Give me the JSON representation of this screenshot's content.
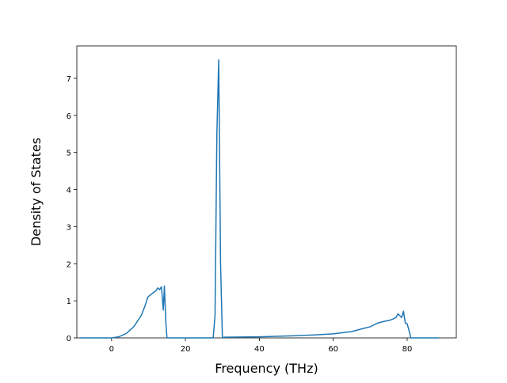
{
  "chart_data": {
    "type": "line",
    "x_label": "Frequency (THz)",
    "y_label": "Density of States",
    "x": [
      -8.5,
      0,
      2,
      4,
      6,
      8,
      9,
      9.8,
      11,
      12,
      12.5,
      13,
      13.5,
      14,
      14.3,
      14.7,
      15,
      27.5,
      28,
      28.5,
      29,
      29.5,
      30,
      30.5,
      40,
      50,
      55,
      60,
      65,
      68,
      70,
      72,
      74,
      75,
      76,
      77,
      77.5,
      78,
      78.5,
      79,
      79.5,
      80,
      80.5,
      81,
      88.5
    ],
    "series": [
      {
        "name": "DOS",
        "color": "#1f77b4",
        "values": [
          0,
          0,
          0.03,
          0.12,
          0.3,
          0.6,
          0.85,
          1.1,
          1.2,
          1.27,
          1.35,
          1.3,
          1.38,
          0.75,
          1.4,
          0.4,
          0,
          0,
          0.6,
          5.5,
          7.5,
          2.0,
          0,
          0.02,
          0.03,
          0.06,
          0.08,
          0.11,
          0.17,
          0.25,
          0.3,
          0.4,
          0.45,
          0.47,
          0.5,
          0.55,
          0.65,
          0.6,
          0.55,
          0.72,
          0.4,
          0.38,
          0.2,
          0,
          0
        ]
      }
    ],
    "xlim": [
      -9.4,
      93.3
    ],
    "ylim": [
      0,
      7.875
    ],
    "xticks": [
      0,
      20,
      40,
      60,
      80
    ],
    "yticks": [
      0,
      1,
      2,
      3,
      4,
      5,
      6,
      7
    ]
  }
}
